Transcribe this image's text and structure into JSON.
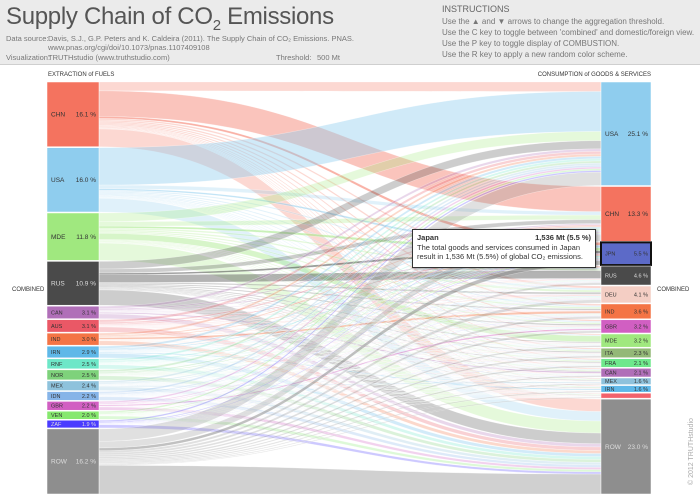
{
  "header": {
    "title_main": "Supply Chain of CO",
    "title_sub": "2",
    "title_end": " Emissions",
    "data_source_label": "Data source:",
    "data_source_text": "Davis, S.J., G.P. Peters and K. Caldeira (2011). The Supply Chain of CO₂ Emissions. PNAS.",
    "data_source_url": "www.pnas.org/cgi/doi/10.1073/pnas.1107409108",
    "visualization_label": "Visualization:",
    "visualization_text": "TRUTHstudio (www.truthstudio.com)",
    "threshold_label": "Threshold:",
    "threshold_value": "500 Mt"
  },
  "instructions": {
    "title": "INSTRUCTIONS",
    "lines": [
      "Use the ▲ and ▼ arrows to change the aggregation threshold.",
      "Use the C key to toggle between 'combined' and domestic/foreign view.",
      "Use the P key to toggle display of COMBUSTION.",
      "Use the R key to apply a new random color scheme."
    ]
  },
  "chart_data": {
    "type": "sankey",
    "left_title": "EXTRACTION of FUELS",
    "right_title": "CONSUMPTION of GOODS & SERVICES",
    "left_side_label": "COMBINED",
    "right_side_label": "COMBINED",
    "sources": [
      {
        "code": "CHN",
        "pct": "16.1 %",
        "value": 16.1,
        "color": "#f4735f"
      },
      {
        "code": "USA",
        "pct": "16.0 %",
        "value": 16.0,
        "color": "#8fcdee"
      },
      {
        "code": "MDE",
        "pct": "11.8 %",
        "value": 11.8,
        "color": "#a0e87f"
      },
      {
        "code": "RUS",
        "pct": "10.9 %",
        "value": 10.9,
        "color": "#4a4a4a"
      },
      {
        "code": "CAN",
        "pct": "3.1 %",
        "value": 3.1,
        "color": "#b06fb8"
      },
      {
        "code": "AUS",
        "pct": "3.1 %",
        "value": 3.1,
        "color": "#ea5866"
      },
      {
        "code": "IND",
        "pct": "3.0 %",
        "value": 3.0,
        "color": "#f47445"
      },
      {
        "code": "IRN",
        "pct": "2.9 %",
        "value": 2.9,
        "color": "#5fb8e8"
      },
      {
        "code": "RNF",
        "pct": "2.5 %",
        "value": 2.5,
        "color": "#6de7c8"
      },
      {
        "code": "NOR",
        "pct": "2.5 %",
        "value": 2.5,
        "color": "#7ed27b"
      },
      {
        "code": "MEX",
        "pct": "2.4 %",
        "value": 2.4,
        "color": "#8ec2dc"
      },
      {
        "code": "IDN",
        "pct": "2.2 %",
        "value": 2.2,
        "color": "#86b4e8"
      },
      {
        "code": "GBR",
        "pct": "2.2 %",
        "value": 2.2,
        "color": "#d15fc2"
      },
      {
        "code": "VEN",
        "pct": "2.0 %",
        "value": 2.0,
        "color": "#86e86e"
      },
      {
        "code": "ZAF",
        "pct": "1.9 %",
        "value": 1.9,
        "color": "#4a3cff"
      },
      {
        "code": "ROW",
        "pct": "16.2 %",
        "value": 16.2,
        "color": "#8e8e8e"
      }
    ],
    "targets": [
      {
        "code": "USA",
        "pct": "25.1 %",
        "value": 25.1,
        "color": "#8fcdee"
      },
      {
        "code": "CHN",
        "pct": "13.3 %",
        "value": 13.3,
        "color": "#f4735f"
      },
      {
        "code": "JPN",
        "pct": "5.5 %",
        "value": 5.5,
        "color": "#5c6ac8"
      },
      {
        "code": "RUS",
        "pct": "4.6 %",
        "value": 4.6,
        "color": "#4a4a4a"
      },
      {
        "code": "DEU",
        "pct": "4.1 %",
        "value": 4.1,
        "color": "#f4cec4"
      },
      {
        "code": "IND",
        "pct": "3.6 %",
        "value": 3.6,
        "color": "#f47445"
      },
      {
        "code": "GBR",
        "pct": "3.2 %",
        "value": 3.2,
        "color": "#d15fc2"
      },
      {
        "code": "MDE",
        "pct": "3.2 %",
        "value": 3.2,
        "color": "#a0e87f"
      },
      {
        "code": "ITA",
        "pct": "2.3 %",
        "value": 2.3,
        "color": "#93b877"
      },
      {
        "code": "FRA",
        "pct": "2.1 %",
        "value": 2.1,
        "color": "#6ee88c"
      },
      {
        "code": "CAN",
        "pct": "2.1 %",
        "value": 2.1,
        "color": "#b06fb8"
      },
      {
        "code": "MEX",
        "pct": "1.6 %",
        "value": 1.6,
        "color": "#8ec2dc"
      },
      {
        "code": "IRN",
        "pct": "1.6 %",
        "value": 1.6,
        "color": "#5fb8e8"
      },
      {
        "code": "ESP",
        "pct": "",
        "value": 1.2,
        "color": "#f2626b"
      },
      {
        "code": "ROW",
        "pct": "23.0 %",
        "value": 23.0,
        "color": "#8e8e8e"
      }
    ],
    "highlighted_target": "JPN"
  },
  "tooltip": {
    "country": "Japan",
    "value": "1,536 Mt (5.5 %)",
    "line1": "The total goods and services consumed in Japan",
    "line2": "result in 1,536 Mt (5.5%) of global CO₂ emissions."
  },
  "footer": {
    "copyright": "© 2012 TRUTHstudio"
  }
}
